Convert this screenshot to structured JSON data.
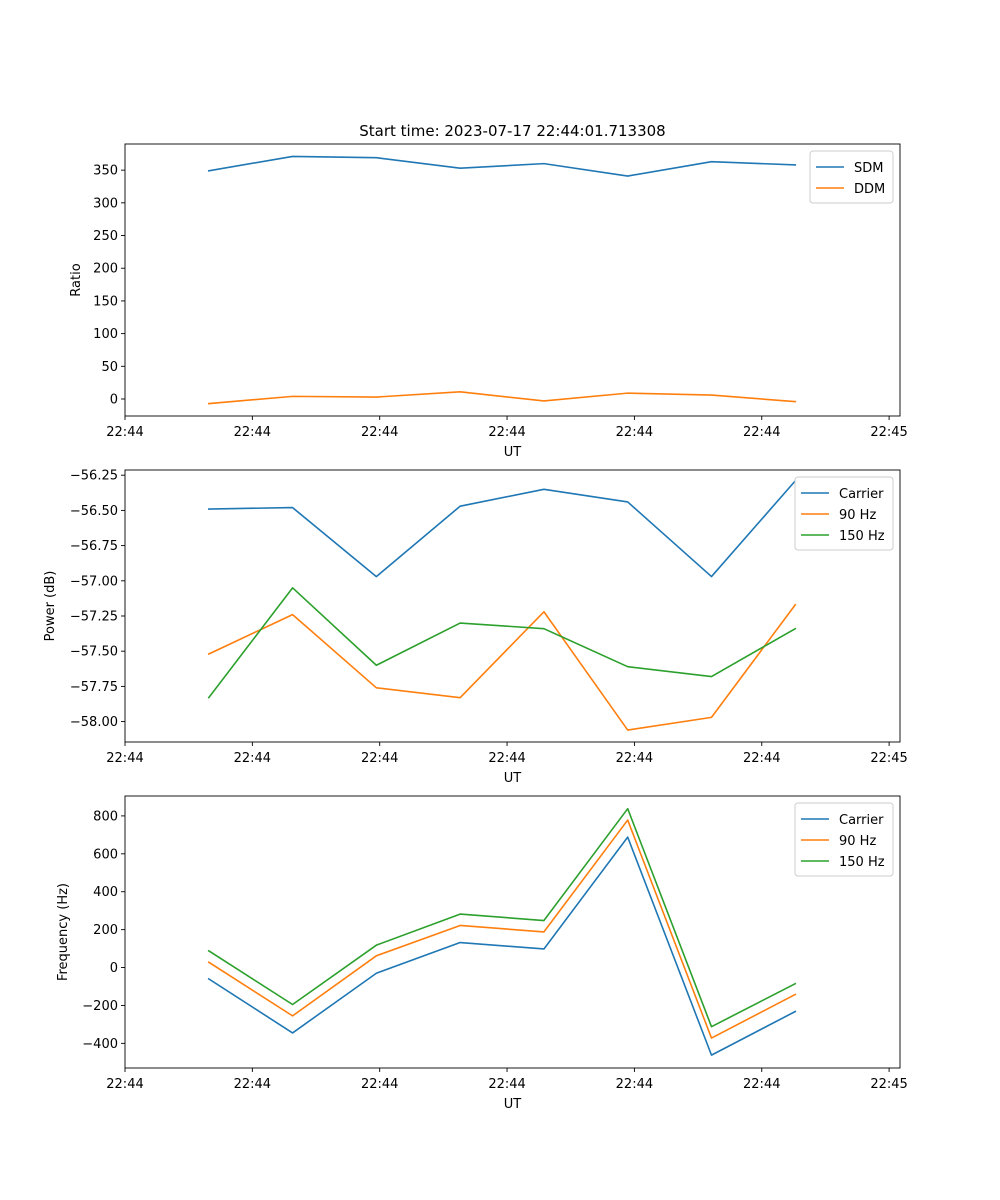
{
  "figure_title": "Start time: 2023-07-17 22:44:01.713308",
  "chart_data": [
    {
      "type": "line",
      "title": "Start time: 2023-07-17 22:44:01.713308",
      "xlabel": "UT",
      "ylabel": "Ratio",
      "x": [
        1,
        2,
        3,
        4,
        5,
        6,
        7,
        8
      ],
      "xlim": [
        0,
        9.25
      ],
      "x_tick_values": [
        0,
        1.52,
        3.04,
        4.56,
        6.08,
        7.6,
        9.12
      ],
      "x_tick_labels": [
        "22:44",
        "22:44",
        "22:44",
        "22:44",
        "22:44",
        "22:44",
        "22:45"
      ],
      "ylim": [
        -26,
        390
      ],
      "y_ticks": [
        0,
        50,
        100,
        150,
        200,
        250,
        300,
        350
      ],
      "legend_position": "top-right",
      "series": [
        {
          "name": "SDM",
          "color": "#1f77b4",
          "values": [
            349,
            371,
            369,
            353,
            360,
            341,
            363,
            358
          ]
        },
        {
          "name": "DDM",
          "color": "#ff7f0e",
          "values": [
            -7,
            4,
            3,
            11,
            -3,
            9,
            6,
            -4
          ]
        }
      ]
    },
    {
      "type": "line",
      "title": "",
      "xlabel": "UT",
      "ylabel": "Power (dB)",
      "x": [
        1,
        2,
        3,
        4,
        5,
        6,
        7,
        8
      ],
      "xlim": [
        0,
        9.25
      ],
      "x_tick_values": [
        0,
        1.52,
        3.04,
        4.56,
        6.08,
        7.6,
        9.12
      ],
      "x_tick_labels": [
        "22:44",
        "22:44",
        "22:44",
        "22:44",
        "22:44",
        "22:44",
        "22:45"
      ],
      "ylim": [
        -58.145,
        -56.213
      ],
      "y_ticks": [
        -58.0,
        -57.75,
        -57.5,
        -57.25,
        -57.0,
        -56.75,
        -56.5,
        -56.25
      ],
      "y_tick_labels": [
        "−58.00",
        "−57.75",
        "−57.50",
        "−57.25",
        "−57.00",
        "−56.75",
        "−56.50",
        "−56.25"
      ],
      "legend_position": "top-right",
      "series": [
        {
          "name": "Carrier",
          "color": "#1f77b4",
          "values": [
            -56.49,
            -56.48,
            -56.97,
            -56.47,
            -56.35,
            -56.44,
            -56.97,
            -56.29
          ]
        },
        {
          "name": "90 Hz",
          "color": "#ff7f0e",
          "values": [
            -57.52,
            -57.24,
            -57.76,
            -57.83,
            -57.22,
            -58.06,
            -57.97,
            -57.17
          ]
        },
        {
          "name": "150 Hz",
          "color": "#2ca02c",
          "values": [
            -57.83,
            -57.05,
            -57.6,
            -57.3,
            -57.34,
            -57.61,
            -57.68,
            -57.34
          ]
        }
      ]
    },
    {
      "type": "line",
      "title": "",
      "xlabel": "UT",
      "ylabel": "Frequency (Hz)",
      "x": [
        1,
        2,
        3,
        4,
        5,
        6,
        7,
        8
      ],
      "xlim": [
        0,
        9.25
      ],
      "x_tick_values": [
        0,
        1.52,
        3.04,
        4.56,
        6.08,
        7.6,
        9.12
      ],
      "x_tick_labels": [
        "22:44",
        "22:44",
        "22:44",
        "22:44",
        "22:44",
        "22:44",
        "22:45"
      ],
      "ylim": [
        -530,
        905
      ],
      "y_ticks": [
        -400,
        -200,
        0,
        200,
        400,
        600,
        800
      ],
      "y_tick_labels": [
        "−400",
        "−200",
        "0",
        "200",
        "400",
        "600",
        "800"
      ],
      "legend_position": "top-right",
      "series": [
        {
          "name": "Carrier",
          "color": "#1f77b4",
          "values": [
            -60,
            -345,
            -30,
            132,
            98,
            688,
            -462,
            -232
          ]
        },
        {
          "name": "90 Hz",
          "color": "#ff7f0e",
          "values": [
            28,
            -255,
            62,
            222,
            188,
            778,
            -372,
            -142
          ]
        },
        {
          "name": "150 Hz",
          "color": "#2ca02c",
          "values": [
            88,
            -195,
            118,
            282,
            248,
            838,
            -312,
            -85
          ]
        }
      ]
    }
  ]
}
